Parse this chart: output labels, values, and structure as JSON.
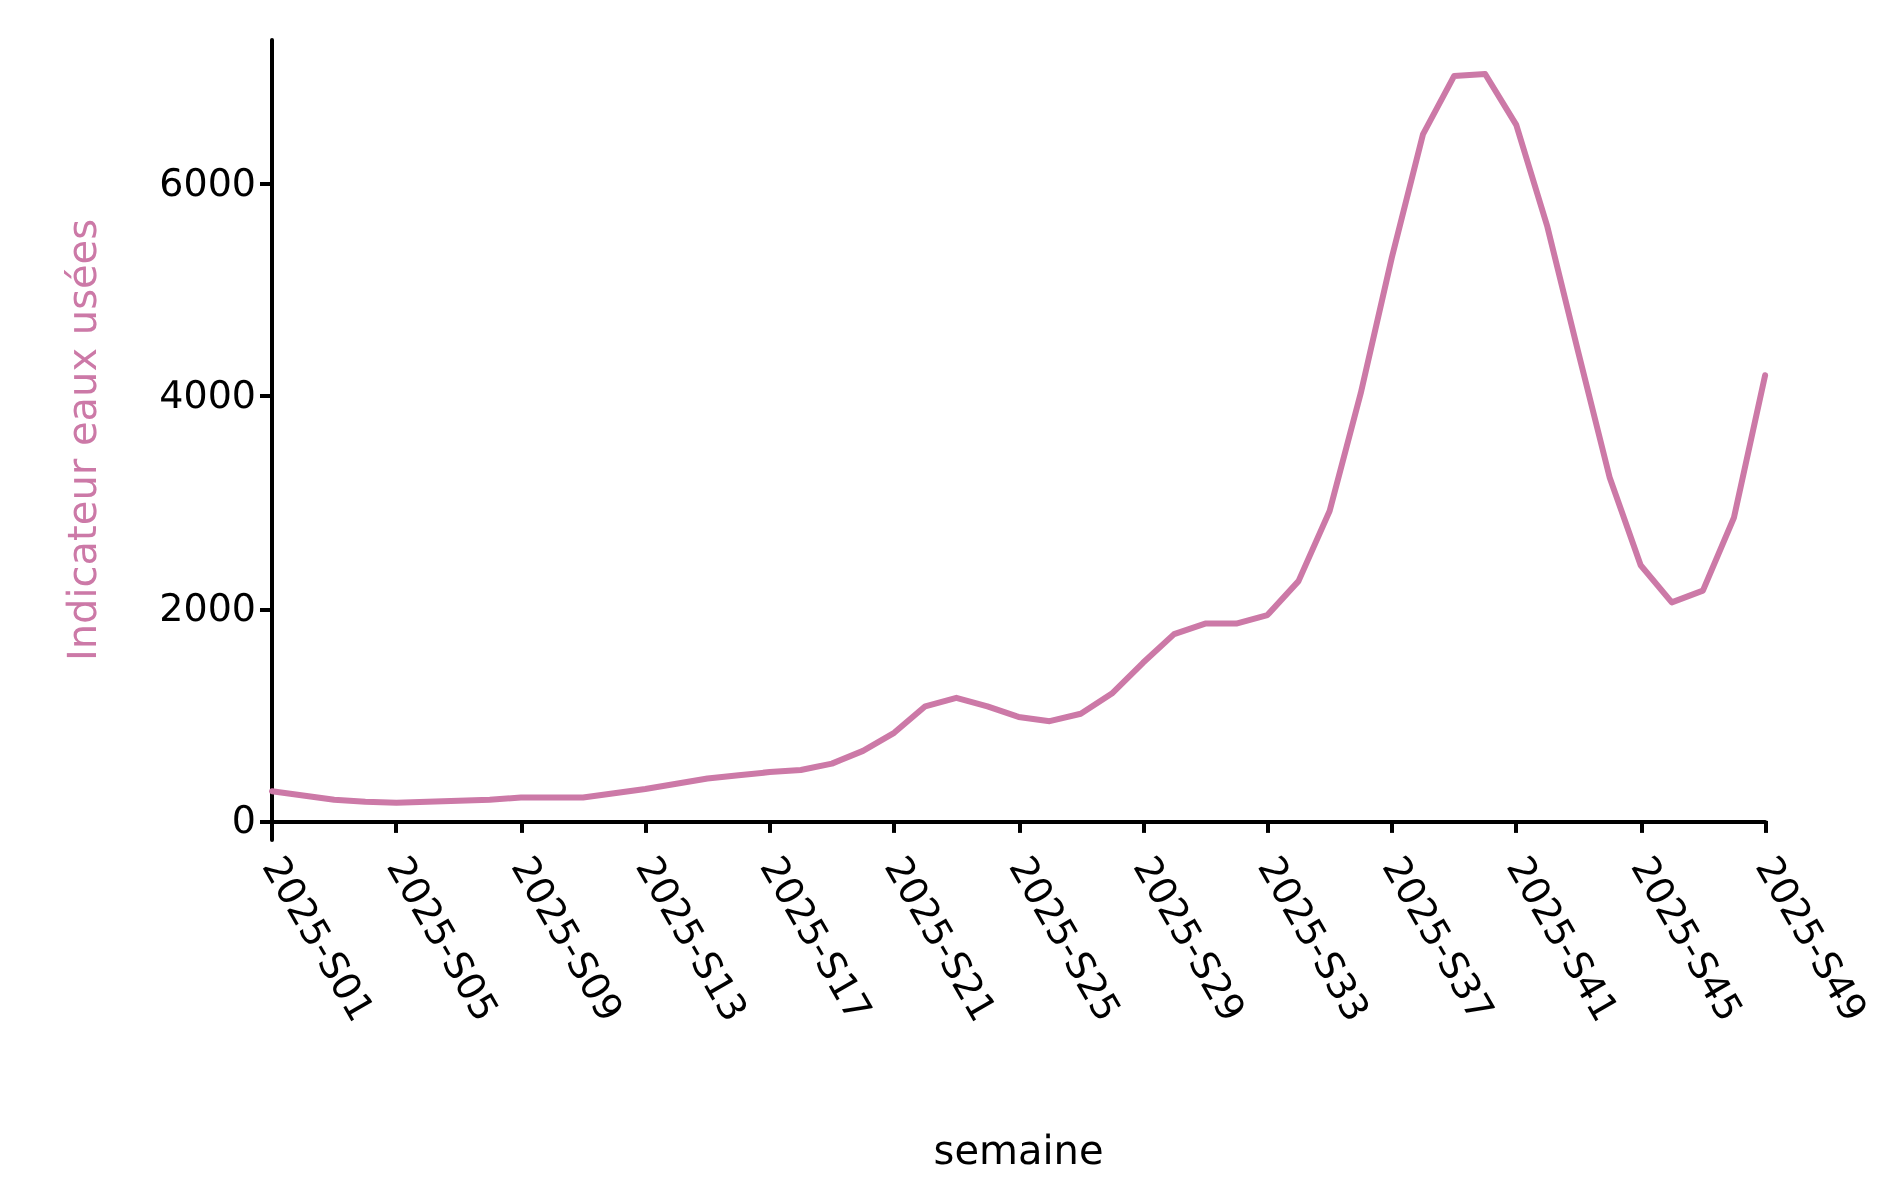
{
  "chart_data": {
    "type": "line",
    "xlabel": "semaine",
    "ylabel": "Indicateur eaux usées",
    "categories": [
      "2025-S01",
      null,
      null,
      null,
      "2025-S05",
      null,
      null,
      null,
      "2025-S09",
      null,
      null,
      null,
      "2025-S13",
      null,
      null,
      null,
      "2025-S17",
      null,
      null,
      null,
      "2025-S21",
      null,
      null,
      null,
      "2025-S25",
      null,
      null,
      null,
      "2025-S29",
      null,
      null,
      null,
      "2025-S33",
      null,
      null,
      null,
      "2025-S37",
      null,
      null,
      null,
      "2025-S41",
      null,
      null,
      null,
      "2025-S45",
      null,
      null,
      null,
      "2025-S49"
    ],
    "series": [
      {
        "color": "#cc79a7",
        "values": [
          280,
          240,
          200,
          180,
          170,
          180,
          190,
          200,
          220,
          220,
          220,
          260,
          300,
          350,
          400,
          430,
          460,
          480,
          540,
          660,
          830,
          1080,
          1160,
          1080,
          980,
          940,
          1010,
          1200,
          1490,
          1760,
          1860,
          1860,
          1940,
          2260,
          2920,
          4030,
          5310,
          6470,
          7020,
          7040,
          6560,
          5600,
          4410,
          3240,
          2410,
          2060,
          2170,
          2860,
          4200
        ]
      }
    ],
    "ylim": [
      -180,
      7360
    ],
    "yticks": [
      0,
      2000,
      4000,
      6000
    ],
    "grid": false,
    "marker": "none",
    "line_style": "solid"
  }
}
